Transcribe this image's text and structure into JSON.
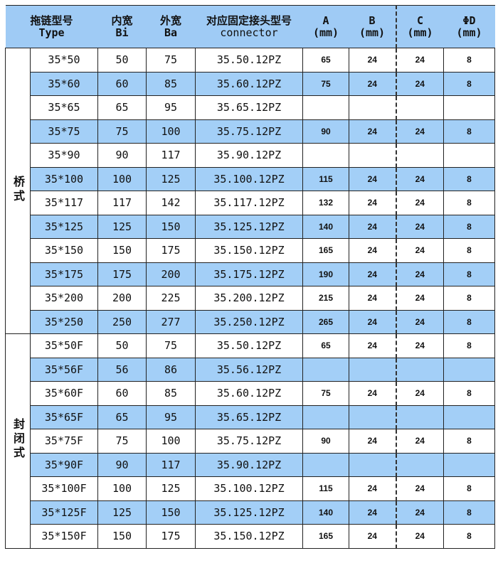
{
  "header": {
    "type_cn": "拖链型号",
    "type_en": "Type",
    "bi_cn": "内宽",
    "bi_en": "Bi",
    "ba_cn": "外宽",
    "ba_en": "Ba",
    "conn_cn": "对应固定接头型号",
    "conn_en": "connector",
    "a": "A",
    "b": "B",
    "c": "C",
    "d": "ΦD",
    "unit": "(mm)"
  },
  "colors": {
    "header_bg": "#9fcbf5",
    "stripe": "#a3cff7"
  },
  "groups": [
    {
      "label": "桥式",
      "rows": [
        [
          "35*50",
          "50",
          "75",
          "35.50.12PZ",
          "65",
          "24",
          "24",
          "8"
        ],
        [
          "35*60",
          "60",
          "85",
          "35.60.12PZ",
          "75",
          "24",
          "24",
          "8"
        ],
        [
          "35*65",
          "65",
          "95",
          "35.65.12PZ",
          "",
          "",
          "",
          ""
        ],
        [
          "35*75",
          "75",
          "100",
          "35.75.12PZ",
          "90",
          "24",
          "24",
          "8"
        ],
        [
          "35*90",
          "90",
          "117",
          "35.90.12PZ",
          "",
          "",
          "",
          ""
        ],
        [
          "35*100",
          "100",
          "125",
          "35.100.12PZ",
          "115",
          "24",
          "24",
          "8"
        ],
        [
          "35*117",
          "117",
          "142",
          "35.117.12PZ",
          "132",
          "24",
          "24",
          "8"
        ],
        [
          "35*125",
          "125",
          "150",
          "35.125.12PZ",
          "140",
          "24",
          "24",
          "8"
        ],
        [
          "35*150",
          "150",
          "175",
          "35.150.12PZ",
          "165",
          "24",
          "24",
          "8"
        ],
        [
          "35*175",
          "175",
          "200",
          "35.175.12PZ",
          "190",
          "24",
          "24",
          "8"
        ],
        [
          "35*200",
          "200",
          "225",
          "35.200.12PZ",
          "215",
          "24",
          "24",
          "8"
        ],
        [
          "35*250",
          "250",
          "277",
          "35.250.12PZ",
          "265",
          "24",
          "24",
          "8"
        ]
      ]
    },
    {
      "label": "封闭式",
      "rows": [
        [
          "35*50F",
          "50",
          "75",
          "35.50.12PZ",
          "65",
          "24",
          "24",
          "8"
        ],
        [
          "35*56F",
          "56",
          "86",
          "35.56.12PZ",
          "",
          "",
          "",
          ""
        ],
        [
          "35*60F",
          "60",
          "85",
          "35.60.12PZ",
          "75",
          "24",
          "24",
          "8"
        ],
        [
          "35*65F",
          "65",
          "95",
          "35.65.12PZ",
          "",
          "",
          "",
          ""
        ],
        [
          "35*75F",
          "75",
          "100",
          "35.75.12PZ",
          "90",
          "24",
          "24",
          "8"
        ],
        [
          "35*90F",
          "90",
          "117",
          "35.90.12PZ",
          "",
          "",
          "",
          ""
        ],
        [
          "35*100F",
          "100",
          "125",
          "35.100.12PZ",
          "115",
          "24",
          "24",
          "8"
        ],
        [
          "35*125F",
          "125",
          "150",
          "35.125.12PZ",
          "140",
          "24",
          "24",
          "8"
        ],
        [
          "35*150F",
          "150",
          "175",
          "35.150.12PZ",
          "165",
          "24",
          "24",
          "8"
        ]
      ]
    }
  ]
}
